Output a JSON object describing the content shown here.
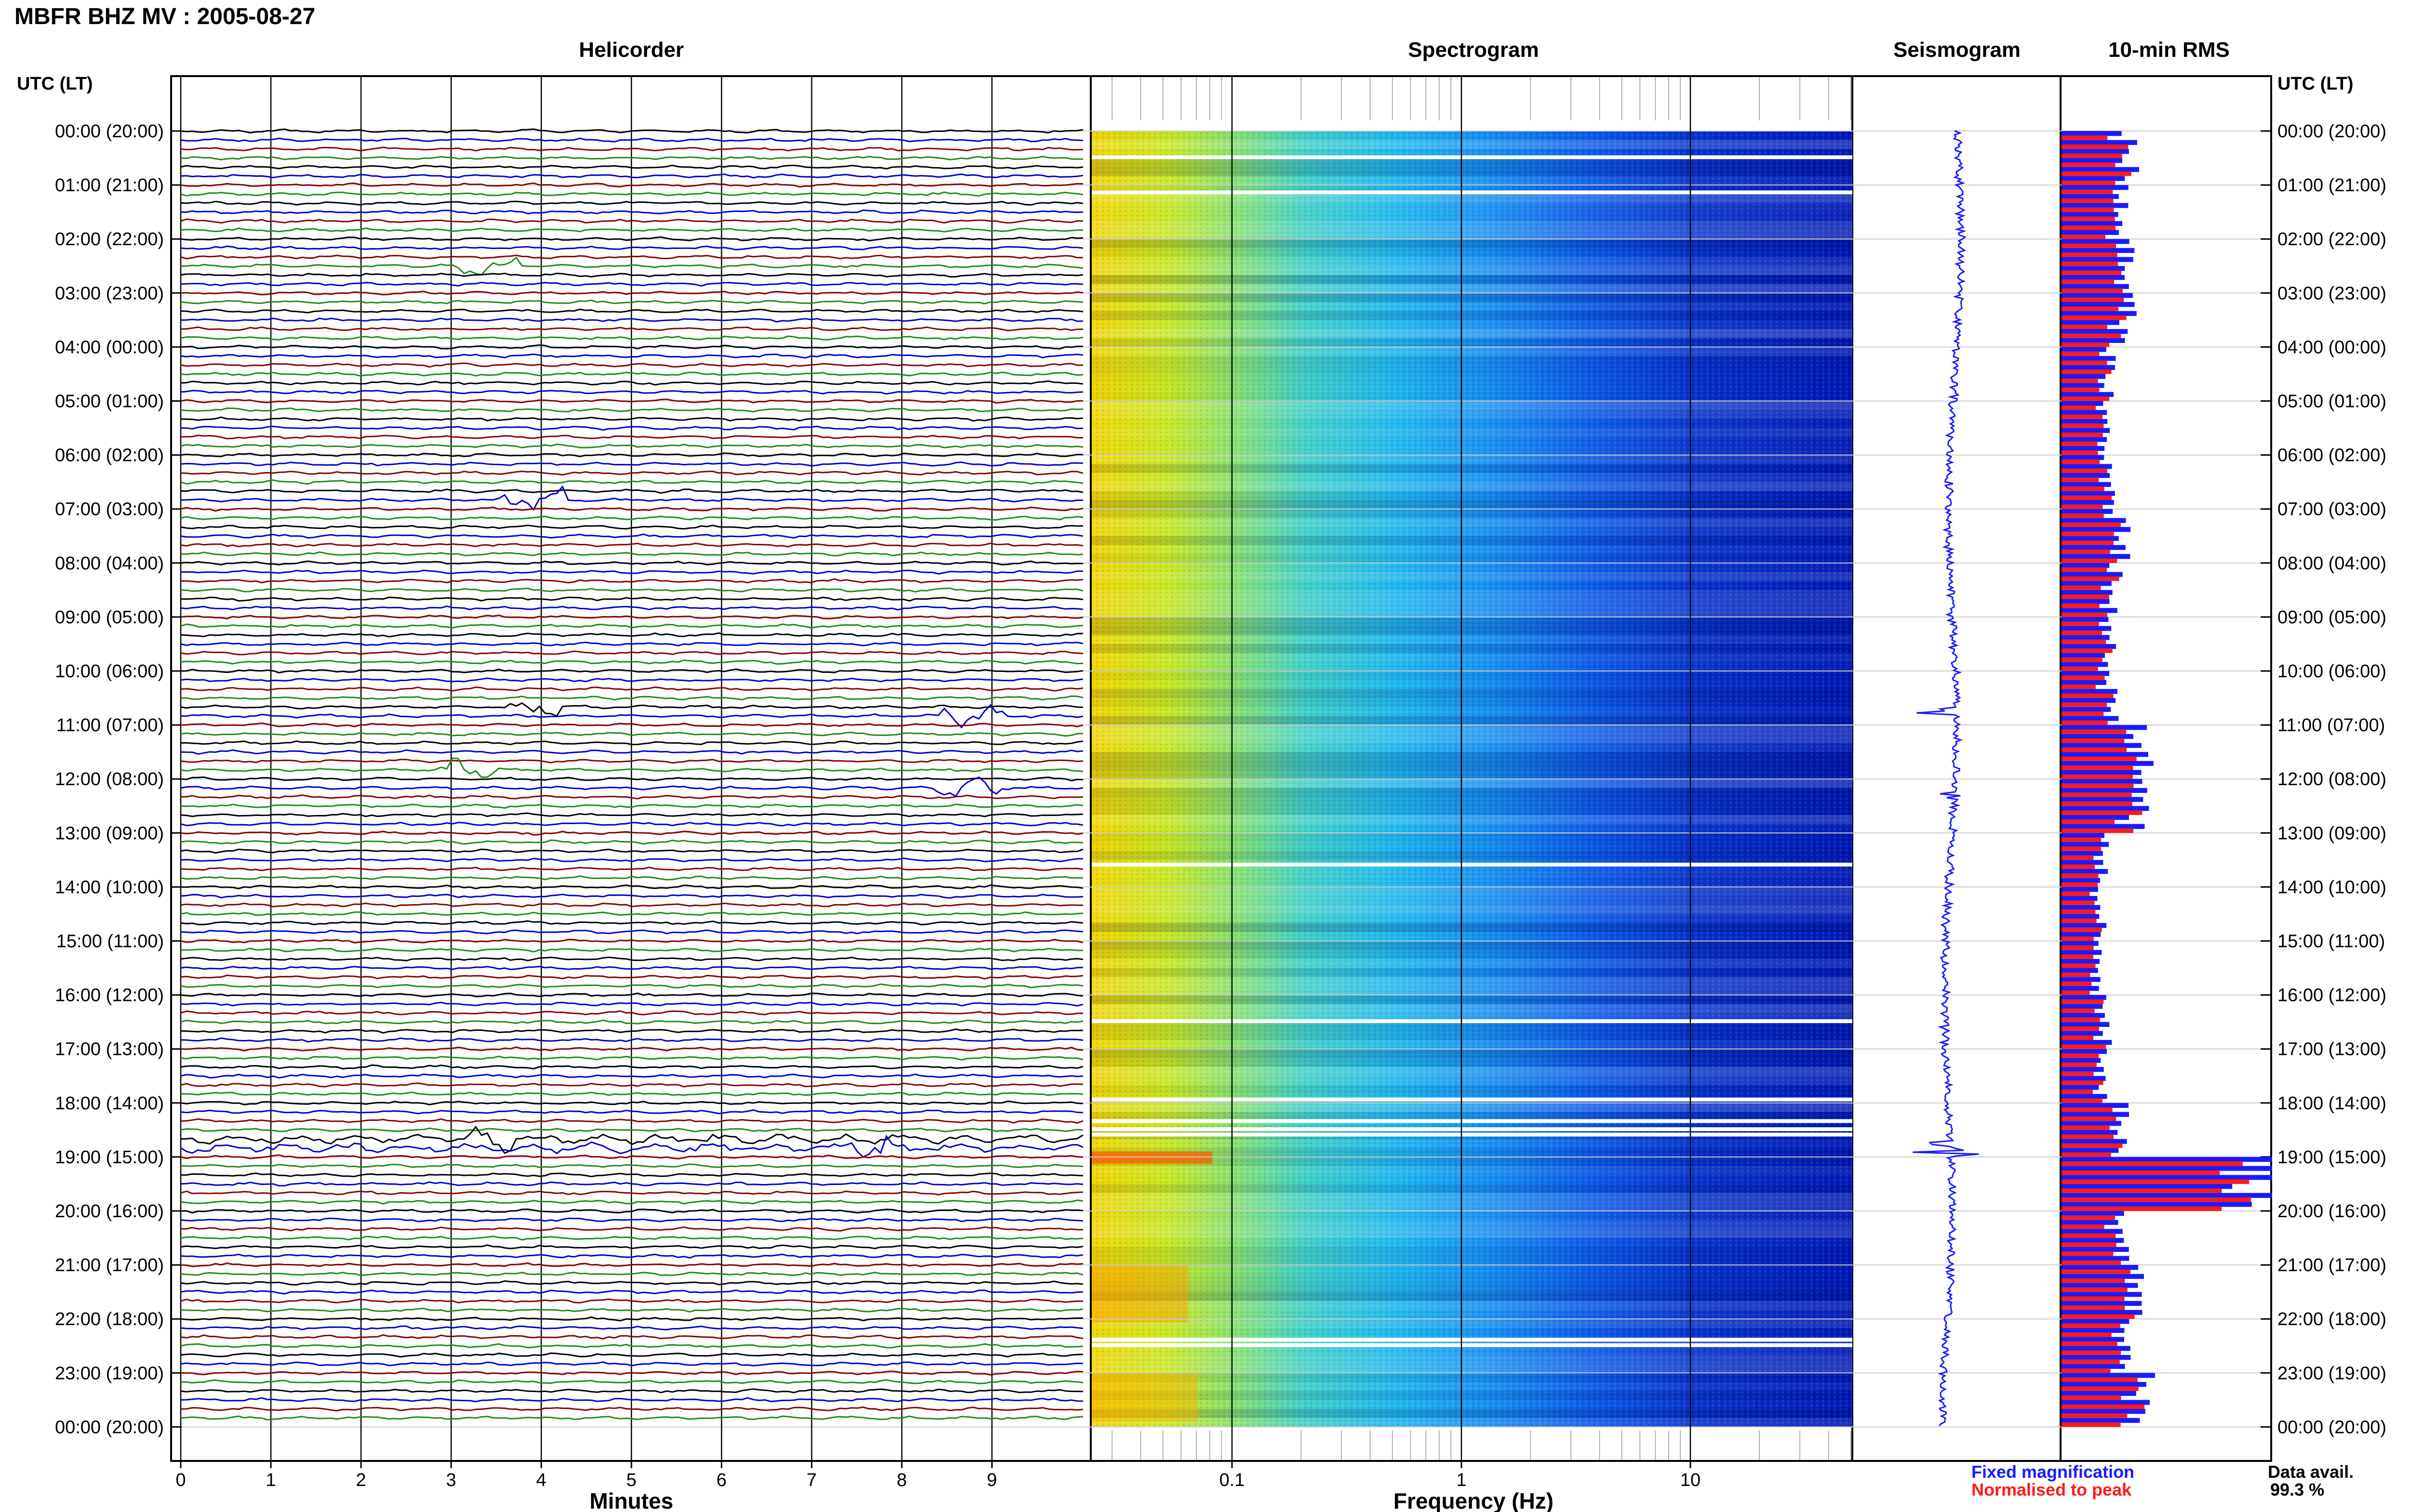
{
  "header": {
    "station_title": "MBFR BHZ MV : 2005-08-27",
    "utc_lt_left": "UTC (LT)",
    "utc_lt_right": "UTC (LT)"
  },
  "panels": {
    "helicorder": "Helicorder",
    "spectrogram": "Spectrogram",
    "seismogram": "Seismogram",
    "rms": "10-min RMS"
  },
  "axes": {
    "helicorder_xlabel": "Minutes",
    "spectrogram_xlabel": "Frequency (Hz)",
    "minute_ticks": [
      "0",
      "1",
      "2",
      "3",
      "4",
      "5",
      "6",
      "7",
      "8",
      "9"
    ],
    "freq_ticks": [
      "0.1",
      "1",
      "10"
    ]
  },
  "time_labels": [
    "00:00 (20:00)",
    "01:00 (21:00)",
    "02:00 (22:00)",
    "03:00 (23:00)",
    "04:00 (00:00)",
    "05:00 (01:00)",
    "06:00 (02:00)",
    "07:00 (03:00)",
    "08:00 (04:00)",
    "09:00 (05:00)",
    "10:00 (06:00)",
    "11:00 (07:00)",
    "12:00 (08:00)",
    "13:00 (09:00)",
    "14:00 (10:00)",
    "15:00 (11:00)",
    "16:00 (12:00)",
    "17:00 (13:00)",
    "18:00 (14:00)",
    "19:00 (15:00)",
    "20:00 (16:00)",
    "21:00 (17:00)",
    "22:00 (18:00)",
    "23:00 (19:00)",
    "00:00 (20:00)"
  ],
  "legend": {
    "fixed": "Fixed magnification",
    "fixed_color": "#1a1aff",
    "normalised": "Normalised to peak",
    "normalised_color": "#ff1a1a",
    "avail_label": "Data avail.",
    "avail_value": "99.3 %"
  },
  "colors": {
    "trace_cycle": [
      "#000000",
      "#1a1aff",
      "#ff0000",
      "#008000"
    ],
    "trace_cycle_dark": [
      "#000000",
      "#0000cc",
      "#8b0000",
      "#1e8b1e"
    ],
    "seismogram": "#1a1aff",
    "rms_fixed": "#1a1aff",
    "rms_normalised": "#ff1a1a"
  },
  "chart_data": {
    "type": "bar",
    "rms_relative_by_hour": {
      "x": [
        0,
        1,
        2,
        3,
        4,
        5,
        6,
        7,
        8,
        9,
        10,
        11,
        12,
        13,
        14,
        15,
        16,
        17,
        18,
        19,
        20,
        21,
        22,
        23
      ],
      "values": [
        0.35,
        0.3,
        0.33,
        0.33,
        0.25,
        0.22,
        0.25,
        0.3,
        0.28,
        0.24,
        0.25,
        0.4,
        0.38,
        0.22,
        0.2,
        0.2,
        0.22,
        0.2,
        0.3,
        1.0,
        0.3,
        0.42,
        0.35,
        0.42
      ]
    },
    "events_minutes_by_hour": {
      "hours": [
        2.5,
        6.8,
        10.7,
        10.8,
        11.8,
        12.1,
        18.6,
        18.8
      ],
      "minutes": [
        3.4,
        3.9,
        3.9,
        8.8,
        3.2,
        8.7,
        3.5,
        7.5
      ]
    }
  }
}
